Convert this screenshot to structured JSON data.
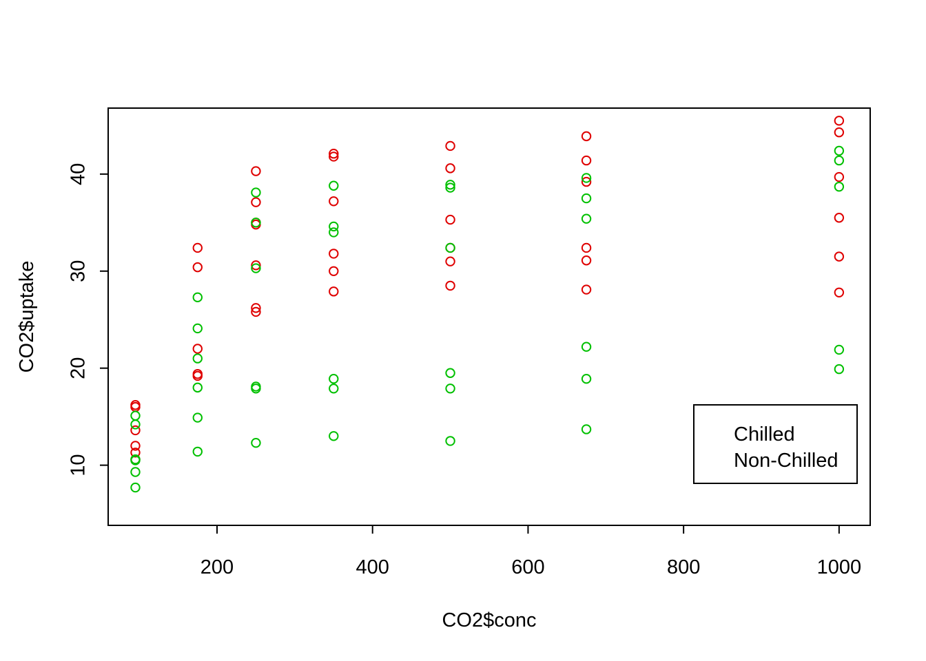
{
  "chart_data": {
    "type": "scatter",
    "title": "",
    "xlabel": "CO2$conc",
    "ylabel": "CO2$uptake",
    "xlim": [
      60,
      1040
    ],
    "ylim": [
      3.8,
      46.8
    ],
    "x_ticks": [
      200,
      400,
      600,
      800,
      1000
    ],
    "y_ticks": [
      10,
      20,
      30,
      40
    ],
    "grid": false,
    "legend": {
      "placement": "bottom-right",
      "entries": [
        "Chilled",
        "Non-Chilled"
      ]
    },
    "series": [
      {
        "key": "red",
        "color": "#DF0000",
        "points": [
          [
            95,
            16.0
          ],
          [
            95,
            16.2
          ],
          [
            95,
            13.6
          ],
          [
            95,
            12.0
          ],
          [
            95,
            11.3
          ],
          [
            95,
            10.6
          ],
          [
            175,
            32.4
          ],
          [
            175,
            30.4
          ],
          [
            175,
            22.0
          ],
          [
            175,
            19.4
          ],
          [
            175,
            19.2
          ],
          [
            250,
            40.3
          ],
          [
            250,
            37.1
          ],
          [
            250,
            35.0
          ],
          [
            250,
            34.8
          ],
          [
            250,
            30.6
          ],
          [
            250,
            26.2
          ],
          [
            250,
            25.8
          ],
          [
            350,
            42.1
          ],
          [
            350,
            41.8
          ],
          [
            350,
            37.2
          ],
          [
            350,
            31.8
          ],
          [
            350,
            30.0
          ],
          [
            350,
            27.9
          ],
          [
            500,
            42.9
          ],
          [
            500,
            40.6
          ],
          [
            500,
            35.3
          ],
          [
            500,
            32.4
          ],
          [
            500,
            31.0
          ],
          [
            500,
            28.5
          ],
          [
            675,
            43.9
          ],
          [
            675,
            41.4
          ],
          [
            675,
            39.2
          ],
          [
            675,
            32.4
          ],
          [
            675,
            31.1
          ],
          [
            675,
            28.1
          ],
          [
            1000,
            45.5
          ],
          [
            1000,
            44.3
          ],
          [
            1000,
            39.7
          ],
          [
            1000,
            35.5
          ],
          [
            1000,
            31.5
          ],
          [
            1000,
            27.8
          ]
        ]
      },
      {
        "key": "green",
        "color": "#00C000",
        "points": [
          [
            95,
            15.1
          ],
          [
            95,
            14.2
          ],
          [
            95,
            10.6
          ],
          [
            95,
            10.5
          ],
          [
            95,
            9.3
          ],
          [
            95,
            7.7
          ],
          [
            175,
            27.3
          ],
          [
            175,
            24.1
          ],
          [
            175,
            21.0
          ],
          [
            175,
            18.0
          ],
          [
            175,
            14.9
          ],
          [
            175,
            11.4
          ],
          [
            250,
            38.1
          ],
          [
            250,
            35.0
          ],
          [
            250,
            30.3
          ],
          [
            250,
            18.1
          ],
          [
            250,
            17.9
          ],
          [
            250,
            12.3
          ],
          [
            350,
            38.8
          ],
          [
            350,
            34.6
          ],
          [
            350,
            34.0
          ],
          [
            350,
            18.9
          ],
          [
            350,
            17.9
          ],
          [
            350,
            13.0
          ],
          [
            500,
            38.9
          ],
          [
            500,
            38.6
          ],
          [
            500,
            32.4
          ],
          [
            500,
            19.5
          ],
          [
            500,
            17.9
          ],
          [
            500,
            12.5
          ],
          [
            675,
            39.6
          ],
          [
            675,
            37.5
          ],
          [
            675,
            35.4
          ],
          [
            675,
            22.2
          ],
          [
            675,
            18.9
          ],
          [
            675,
            13.7
          ],
          [
            1000,
            42.4
          ],
          [
            1000,
            41.4
          ],
          [
            1000,
            38.7
          ],
          [
            1000,
            21.9
          ],
          [
            1000,
            19.9
          ]
        ]
      }
    ]
  }
}
